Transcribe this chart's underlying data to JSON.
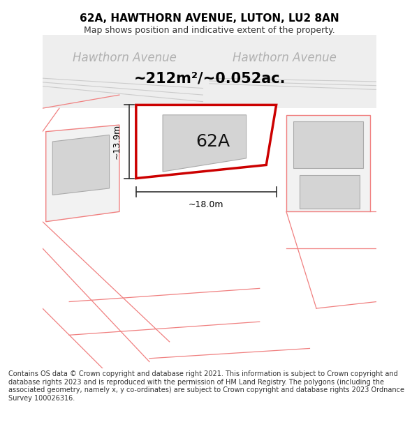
{
  "title": "62A, HAWTHORN AVENUE, LUTON, LU2 8AN",
  "subtitle": "Map shows position and indicative extent of the property.",
  "area_label": "~212m²/~0.052ac.",
  "plot_label": "62A",
  "width_label": "~18.0m",
  "height_label": "~13.9m",
  "footer": "Contains OS data © Crown copyright and database right 2021. This information is subject to Crown copyright and database rights 2023 and is reproduced with the permission of HM Land Registry. The polygons (including the associated geometry, namely x, y co-ordinates) are subject to Crown copyright and database rights 2023 Ordnance Survey 100026316.",
  "bg_color": "#ffffff",
  "map_bg": "#f5f5f5",
  "road_label_color": "#b0b0b0",
  "plot_edge_color": "#cc0000",
  "building_fill": "#d4d4d4",
  "building_edge": "#aaaaaa",
  "neighbor_edge_color": "#f08080",
  "neighbor_fill_color": "#f2f2f2",
  "dim_line_color": "#333333",
  "title_fontsize": 11,
  "subtitle_fontsize": 9,
  "area_fontsize": 15,
  "plot_label_fontsize": 18,
  "road_label_fontsize": 12,
  "dim_fontsize": 9,
  "footer_fontsize": 7.0
}
